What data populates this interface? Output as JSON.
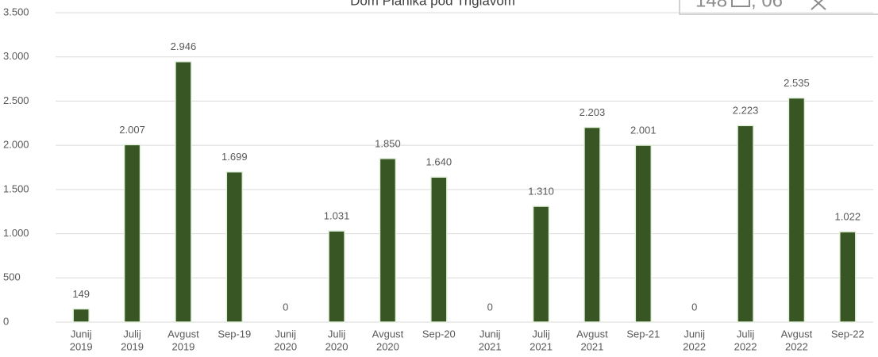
{
  "chart_data": {
    "type": "bar",
    "title": "Dom Planika pod Triglavom",
    "overlay_texts": [
      "148",
      ", 06"
    ],
    "categories": [
      [
        "Junij",
        "2019"
      ],
      [
        "Julij",
        "2019"
      ],
      [
        "Avgust",
        "2019"
      ],
      [
        "Sep-19"
      ],
      [
        "Junij",
        "2020"
      ],
      [
        "Julij",
        "2020"
      ],
      [
        "Avgust",
        "2020"
      ],
      [
        "Sep-20"
      ],
      [
        "Junij",
        "2021"
      ],
      [
        "Julij",
        "2021"
      ],
      [
        "Avgust",
        "2021"
      ],
      [
        "Sep-21"
      ],
      [
        "Junij",
        "2022"
      ],
      [
        "Julij",
        "2022"
      ],
      [
        "Avgust",
        "2022"
      ],
      [
        "Sep-22"
      ]
    ],
    "values": [
      149,
      2007,
      2946,
      1699,
      0,
      1031,
      1850,
      1640,
      0,
      1310,
      2203,
      2001,
      0,
      2223,
      2535,
      1022
    ],
    "value_labels": [
      "149",
      "2.007",
      "2.946",
      "1.699",
      "0",
      "1.031",
      "1.850",
      "1.640",
      "0",
      "1.310",
      "2.203",
      "2.001",
      "0",
      "2.223",
      "2.535",
      "1.022"
    ],
    "color": "#375623",
    "ylim": [
      0,
      3500
    ],
    "yticks": [
      0,
      500,
      {
        "value": 1000,
        "label": "1.000"
      },
      {
        "value": 1500,
        "label": "1.500"
      },
      {
        "value": 2000,
        "label": "2.000"
      },
      {
        "value": 2500,
        "label": "2.500"
      },
      {
        "value": 3000,
        "label": "3.000"
      },
      {
        "value": 3500,
        "label": "3.500"
      }
    ],
    "grid": true
  }
}
